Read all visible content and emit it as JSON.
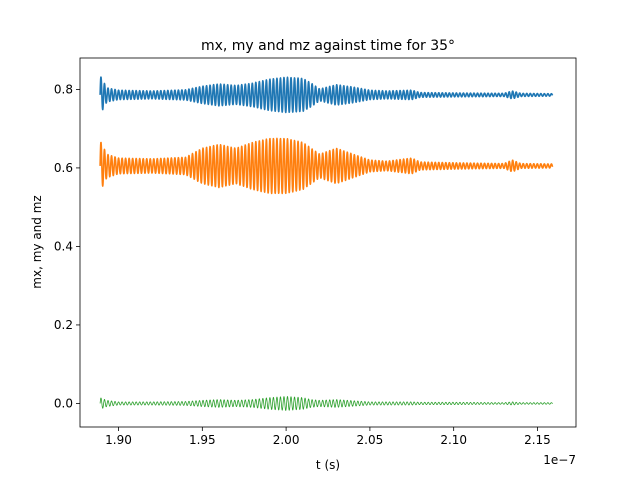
{
  "chart_data": {
    "type": "line",
    "title": "mx, my and mz against time for 35°",
    "xlabel": "t (s)",
    "ylabel": "mx, my and mz",
    "x_offset_label": "1e−7",
    "xlim": [
      1.877,
      2.173
    ],
    "ylim": [
      -0.06,
      0.88
    ],
    "x_ticks": [
      1.9,
      1.95,
      2.0,
      2.05,
      2.1,
      2.15
    ],
    "x_tick_labels": [
      "1.90",
      "1.95",
      "2.00",
      "2.05",
      "2.10",
      "2.15"
    ],
    "y_ticks": [
      0.0,
      0.2,
      0.4,
      0.6,
      0.8
    ],
    "y_tick_labels": [
      "0.0",
      "0.2",
      "0.4",
      "0.6",
      "0.8"
    ],
    "grid": false,
    "colors": {
      "mx": "#1f77b4",
      "my": "#ff7f0e",
      "mz": "#2ca02c"
    },
    "series": [
      {
        "key": "mx",
        "t_range": [
          1.889,
          2.159
        ],
        "mean": 0.786,
        "amplitude_envelope": [
          [
            1.889,
            0.05
          ],
          [
            1.893,
            0.018
          ],
          [
            1.9,
            0.012
          ],
          [
            1.92,
            0.01
          ],
          [
            1.94,
            0.013
          ],
          [
            1.95,
            0.022
          ],
          [
            1.96,
            0.028
          ],
          [
            1.97,
            0.024
          ],
          [
            1.98,
            0.03
          ],
          [
            1.99,
            0.04
          ],
          [
            2.0,
            0.045
          ],
          [
            2.01,
            0.042
          ],
          [
            2.015,
            0.03
          ],
          [
            2.02,
            0.015
          ],
          [
            2.03,
            0.026
          ],
          [
            2.04,
            0.02
          ],
          [
            2.05,
            0.012
          ],
          [
            2.06,
            0.01
          ],
          [
            2.075,
            0.012
          ],
          [
            2.08,
            0.006
          ],
          [
            2.1,
            0.005
          ],
          [
            2.13,
            0.004
          ],
          [
            2.135,
            0.01
          ],
          [
            2.14,
            0.004
          ],
          [
            2.159,
            0.003
          ]
        ]
      },
      {
        "key": "my",
        "t_range": [
          1.889,
          2.159
        ],
        "mean": 0.605,
        "amplitude_envelope": [
          [
            1.889,
            0.065
          ],
          [
            1.893,
            0.03
          ],
          [
            1.9,
            0.02
          ],
          [
            1.92,
            0.018
          ],
          [
            1.94,
            0.022
          ],
          [
            1.95,
            0.045
          ],
          [
            1.96,
            0.055
          ],
          [
            1.97,
            0.045
          ],
          [
            1.98,
            0.06
          ],
          [
            1.99,
            0.07
          ],
          [
            2.0,
            0.07
          ],
          [
            2.01,
            0.06
          ],
          [
            2.015,
            0.045
          ],
          [
            2.02,
            0.03
          ],
          [
            2.03,
            0.045
          ],
          [
            2.04,
            0.03
          ],
          [
            2.05,
            0.015
          ],
          [
            2.06,
            0.012
          ],
          [
            2.075,
            0.02
          ],
          [
            2.08,
            0.01
          ],
          [
            2.1,
            0.008
          ],
          [
            2.13,
            0.006
          ],
          [
            2.135,
            0.015
          ],
          [
            2.14,
            0.006
          ],
          [
            2.159,
            0.005
          ]
        ]
      },
      {
        "key": "mz",
        "t_range": [
          1.889,
          2.159
        ],
        "mean": 0.0,
        "amplitude_envelope": [
          [
            1.889,
            0.015
          ],
          [
            1.893,
            0.008
          ],
          [
            1.9,
            0.004
          ],
          [
            1.92,
            0.004
          ],
          [
            1.94,
            0.005
          ],
          [
            1.95,
            0.008
          ],
          [
            1.96,
            0.01
          ],
          [
            1.97,
            0.008
          ],
          [
            1.98,
            0.01
          ],
          [
            1.99,
            0.015
          ],
          [
            2.0,
            0.018
          ],
          [
            2.01,
            0.015
          ],
          [
            2.015,
            0.01
          ],
          [
            2.02,
            0.008
          ],
          [
            2.03,
            0.01
          ],
          [
            2.04,
            0.007
          ],
          [
            2.05,
            0.004
          ],
          [
            2.06,
            0.004
          ],
          [
            2.075,
            0.004
          ],
          [
            2.08,
            0.003
          ],
          [
            2.1,
            0.003
          ],
          [
            2.13,
            0.002
          ],
          [
            2.135,
            0.004
          ],
          [
            2.14,
            0.002
          ],
          [
            2.159,
            0.002
          ]
        ]
      }
    ]
  }
}
